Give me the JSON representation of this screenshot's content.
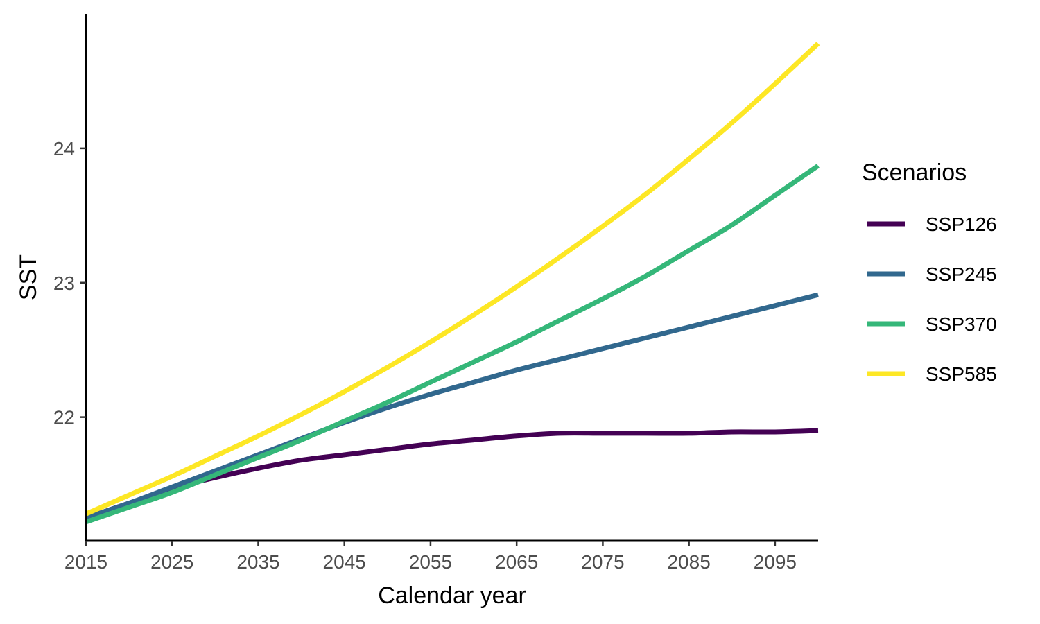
{
  "chart_data": {
    "type": "line",
    "title": "",
    "xlabel": "Calendar year",
    "ylabel": "SST",
    "xlim": [
      2015,
      2100
    ],
    "ylim": [
      21.08,
      25.0
    ],
    "x_ticks": [
      2015,
      2025,
      2035,
      2045,
      2055,
      2065,
      2075,
      2085,
      2095
    ],
    "y_ticks": [
      22,
      23,
      24
    ],
    "grid": false,
    "legend": {
      "title": "Scenarios",
      "placement": "right"
    },
    "x": [
      2015,
      2020,
      2025,
      2030,
      2035,
      2040,
      2045,
      2050,
      2055,
      2060,
      2065,
      2070,
      2075,
      2080,
      2085,
      2090,
      2095,
      2100
    ],
    "series": [
      {
        "name": "SSP126",
        "color": "#440154",
        "values": [
          21.25,
          21.36,
          21.47,
          21.55,
          21.62,
          21.68,
          21.72,
          21.76,
          21.8,
          21.83,
          21.86,
          21.88,
          21.88,
          21.88,
          21.88,
          21.89,
          21.89,
          21.9
        ]
      },
      {
        "name": "SSP245",
        "color": "#31688e",
        "values": [
          21.25,
          21.36,
          21.48,
          21.6,
          21.72,
          21.84,
          21.96,
          22.07,
          22.17,
          22.26,
          22.35,
          22.43,
          22.51,
          22.59,
          22.67,
          22.75,
          22.83,
          22.91
        ]
      },
      {
        "name": "SSP370",
        "color": "#35b779",
        "values": [
          21.22,
          21.33,
          21.44,
          21.57,
          21.7,
          21.83,
          21.97,
          22.11,
          22.26,
          22.41,
          22.56,
          22.72,
          22.88,
          23.05,
          23.24,
          23.43,
          23.65,
          23.87
        ]
      },
      {
        "name": "SSP585",
        "color": "#fde725",
        "values": [
          21.28,
          21.42,
          21.56,
          21.71,
          21.86,
          22.02,
          22.19,
          22.37,
          22.56,
          22.76,
          22.97,
          23.19,
          23.42,
          23.66,
          23.92,
          24.19,
          24.48,
          24.78
        ]
      }
    ]
  }
}
